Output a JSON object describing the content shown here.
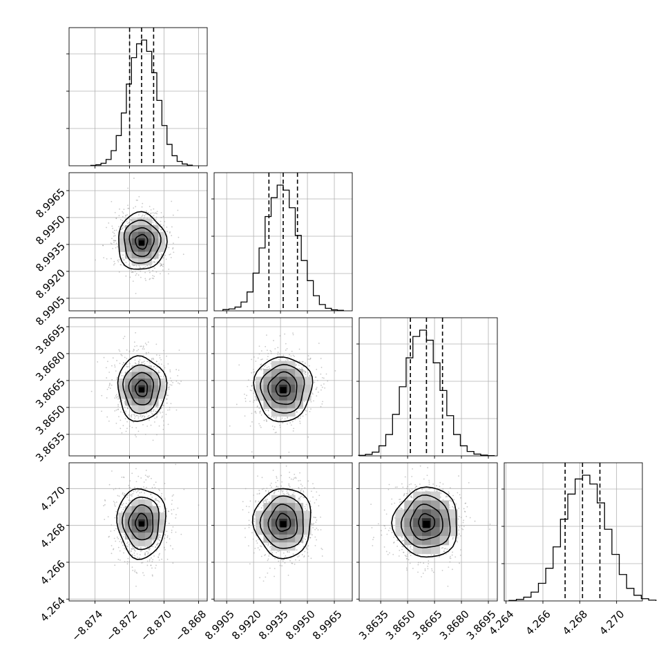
{
  "chart_data": {
    "type": "corner",
    "grid": true,
    "quantiles": [
      0.16,
      0.5,
      0.84
    ],
    "parameters": [
      {
        "mean": -8.8713,
        "std": 0.0007,
        "range": [
          -8.8755,
          -8.8675
        ],
        "ticks": [
          -8.874,
          -8.872,
          -8.87,
          -8.868
        ],
        "tick_labels": [
          "−8.874",
          "−8.872",
          "−8.870",
          "−8.868"
        ],
        "hist": [
          0.003,
          0.008,
          0.02,
          0.05,
          0.12,
          0.24,
          0.42,
          0.65,
          0.86,
          0.97,
          1.0,
          0.91,
          0.74,
          0.52,
          0.32,
          0.17,
          0.08,
          0.035,
          0.014,
          0.005
        ]
      },
      {
        "mean": 8.99365,
        "std": 0.0008,
        "range": [
          8.9898,
          8.9975
        ],
        "ticks": [
          8.9905,
          8.992,
          8.9935,
          8.995,
          8.9965
        ],
        "tick_labels": [
          "8.9905",
          "8.9920",
          "8.9935",
          "8.9950",
          "8.9965"
        ],
        "hist": [
          0.01,
          0.015,
          0.03,
          0.07,
          0.15,
          0.3,
          0.5,
          0.75,
          0.9,
          1.0,
          0.96,
          0.82,
          0.6,
          0.4,
          0.24,
          0.12,
          0.05,
          0.02,
          0.008,
          0.004
        ]
      },
      {
        "mean": 3.86605,
        "std": 0.0009,
        "range": [
          3.8623,
          3.87
        ],
        "ticks": [
          3.8635,
          3.865,
          3.8665,
          3.868,
          3.8695
        ],
        "tick_labels": [
          "3.8635",
          "3.8650",
          "3.8665",
          "3.8680",
          "3.8695"
        ],
        "hist": [
          0.004,
          0.012,
          0.03,
          0.08,
          0.17,
          0.33,
          0.55,
          0.78,
          0.95,
          1.0,
          0.92,
          0.74,
          0.52,
          0.32,
          0.17,
          0.08,
          0.035,
          0.014,
          0.006,
          0.002
        ]
      },
      {
        "mean": 4.26815,
        "std": 0.00095,
        "range": [
          4.2639,
          4.2714
        ],
        "ticks": [
          4.264,
          4.266,
          4.268,
          4.27
        ],
        "tick_labels": [
          "4.264",
          "4.266",
          "4.268",
          "4.270"
        ],
        "hist": [
          0.004,
          0.012,
          0.03,
          0.07,
          0.14,
          0.26,
          0.43,
          0.65,
          0.85,
          0.97,
          1.0,
          0.93,
          0.78,
          0.57,
          0.37,
          0.21,
          0.1,
          0.045,
          0.018,
          0.006
        ]
      }
    ]
  }
}
